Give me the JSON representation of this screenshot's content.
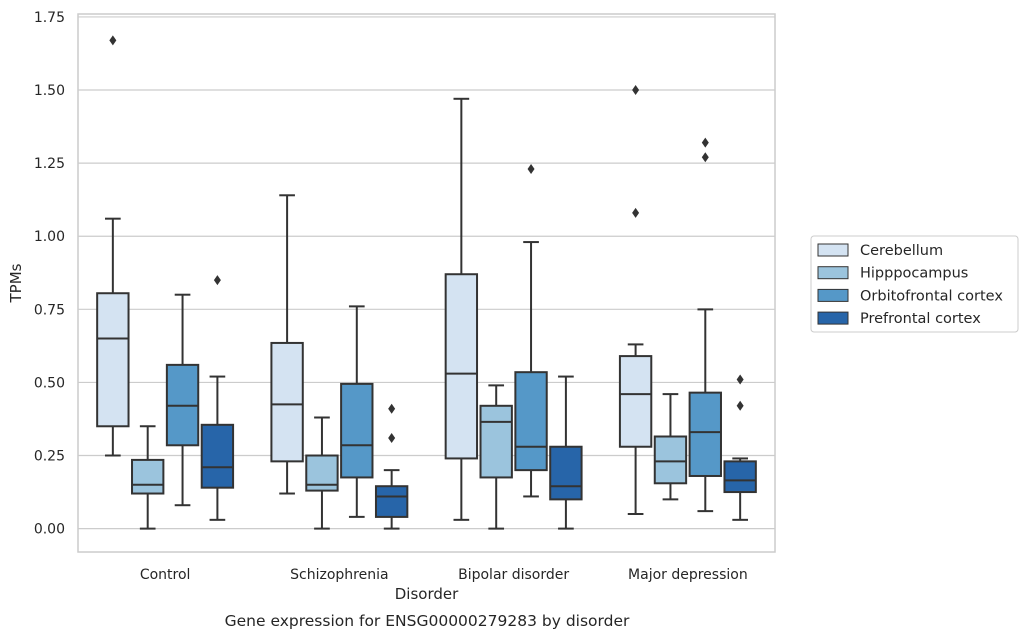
{
  "caption": "Gene expression for ENSG00000279283 by disorder",
  "chart_data": {
    "type": "boxplot",
    "xlabel": "Disorder",
    "ylabel": "TPMs",
    "ylim": [
      -0.08,
      1.76
    ],
    "y_ticks": [
      "0.00",
      "0.25",
      "0.50",
      "0.75",
      "1.00",
      "1.25",
      "1.50",
      "1.75"
    ],
    "grid": true,
    "legend_position": "right",
    "categories": [
      "Control",
      "Schizophrenia",
      "Bipolar disorder",
      "Major depression"
    ],
    "series": [
      {
        "name": "Cerebellum",
        "color": "#d4e3f2",
        "boxes": [
          {
            "whisker_low": 0.25,
            "q1": 0.35,
            "median": 0.65,
            "q3": 0.805,
            "whisker_high": 1.06,
            "outliers": [
              1.67
            ]
          },
          {
            "whisker_low": 0.12,
            "q1": 0.23,
            "median": 0.425,
            "q3": 0.635,
            "whisker_high": 1.14,
            "outliers": []
          },
          {
            "whisker_low": 0.03,
            "q1": 0.24,
            "median": 0.53,
            "q3": 0.87,
            "whisker_high": 1.47,
            "outliers": []
          },
          {
            "whisker_low": 0.05,
            "q1": 0.28,
            "median": 0.46,
            "q3": 0.59,
            "whisker_high": 0.63,
            "outliers": [
              1.08,
              1.5
            ]
          }
        ]
      },
      {
        "name": "Hipppocampus",
        "color": "#9bc4dd",
        "boxes": [
          {
            "whisker_low": 0.0,
            "q1": 0.12,
            "median": 0.15,
            "q3": 0.235,
            "whisker_high": 0.35,
            "outliers": []
          },
          {
            "whisker_low": 0.0,
            "q1": 0.13,
            "median": 0.15,
            "q3": 0.25,
            "whisker_high": 0.38,
            "outliers": []
          },
          {
            "whisker_low": 0.0,
            "q1": 0.175,
            "median": 0.365,
            "q3": 0.42,
            "whisker_high": 0.49,
            "outliers": []
          },
          {
            "whisker_low": 0.1,
            "q1": 0.155,
            "median": 0.23,
            "q3": 0.315,
            "whisker_high": 0.46,
            "outliers": []
          }
        ]
      },
      {
        "name": "Orbitofrontal cortex",
        "color": "#5598c8",
        "boxes": [
          {
            "whisker_low": 0.08,
            "q1": 0.285,
            "median": 0.42,
            "q3": 0.56,
            "whisker_high": 0.8,
            "outliers": []
          },
          {
            "whisker_low": 0.04,
            "q1": 0.175,
            "median": 0.285,
            "q3": 0.495,
            "whisker_high": 0.76,
            "outliers": []
          },
          {
            "whisker_low": 0.11,
            "q1": 0.2,
            "median": 0.28,
            "q3": 0.535,
            "whisker_high": 0.98,
            "outliers": [
              1.23
            ]
          },
          {
            "whisker_low": 0.06,
            "q1": 0.18,
            "median": 0.33,
            "q3": 0.465,
            "whisker_high": 0.75,
            "outliers": [
              1.27,
              1.32
            ]
          }
        ]
      },
      {
        "name": "Prefrontal cortex",
        "color": "#2765a9",
        "boxes": [
          {
            "whisker_low": 0.03,
            "q1": 0.14,
            "median": 0.21,
            "q3": 0.355,
            "whisker_high": 0.52,
            "outliers": [
              0.85
            ]
          },
          {
            "whisker_low": 0.0,
            "q1": 0.04,
            "median": 0.11,
            "q3": 0.145,
            "whisker_high": 0.2,
            "outliers": [
              0.31,
              0.41
            ]
          },
          {
            "whisker_low": 0.0,
            "q1": 0.1,
            "median": 0.145,
            "q3": 0.28,
            "whisker_high": 0.52,
            "outliers": []
          },
          {
            "whisker_low": 0.03,
            "q1": 0.125,
            "median": 0.165,
            "q3": 0.23,
            "whisker_high": 0.24,
            "outliers": [
              0.42,
              0.51
            ]
          }
        ]
      }
    ]
  }
}
